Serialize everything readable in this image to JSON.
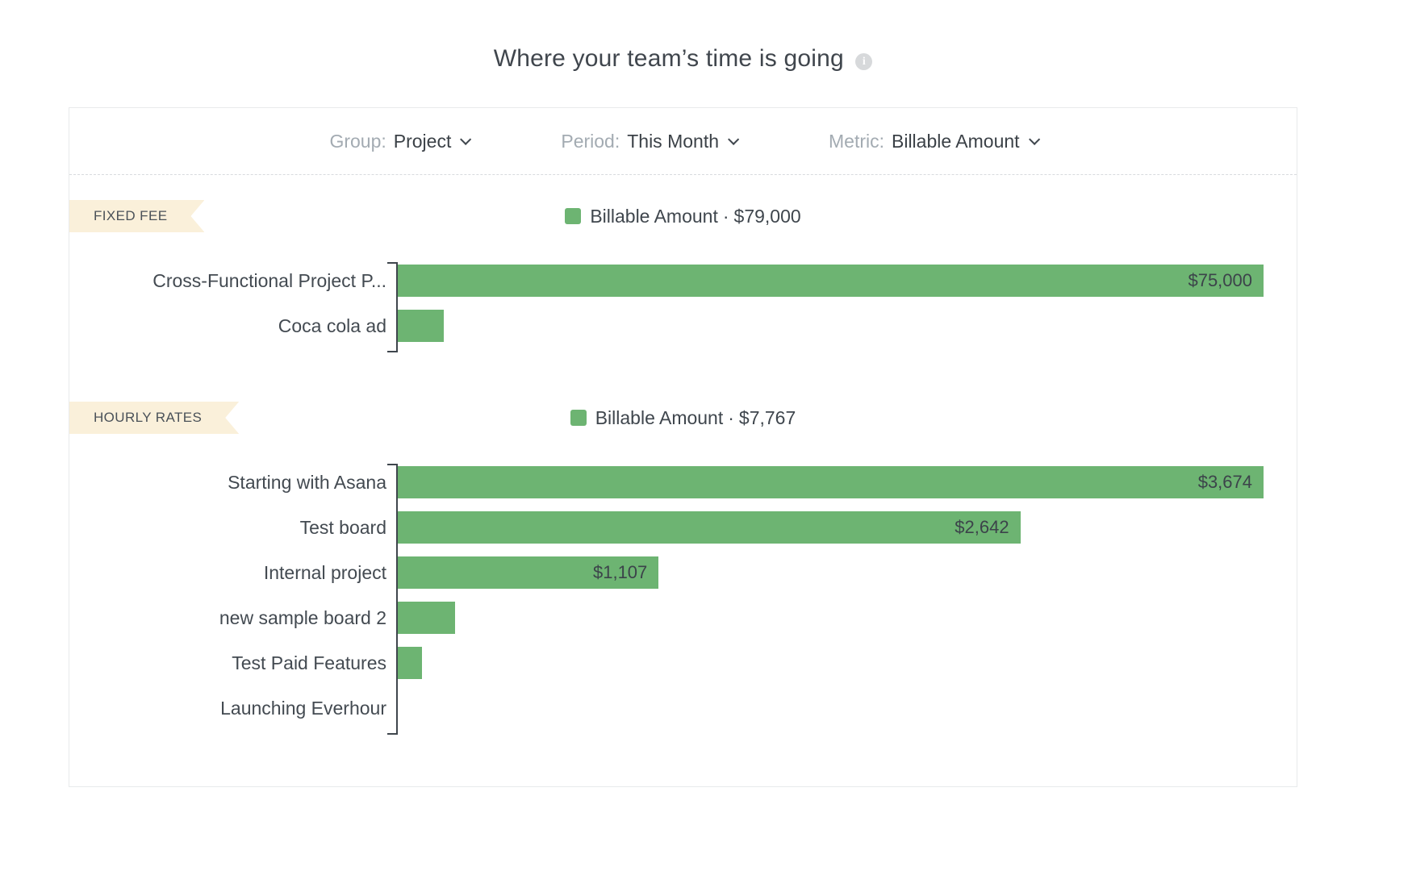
{
  "page": {
    "title": "Where your team’s time is going"
  },
  "filters": [
    {
      "label": "Group:",
      "value": "Project"
    },
    {
      "label": "Period:",
      "value": "This Month"
    },
    {
      "label": "Metric:",
      "value": "Billable Amount"
    }
  ],
  "colors": {
    "bar_green": "#6db472",
    "badge_background": "#faf0da",
    "panel_border": "#e8eaeb",
    "muted_text": "#a3abb2",
    "dark_text": "#3f464d"
  },
  "chart_data": [
    {
      "type": "bar",
      "orientation": "horizontal",
      "section_badge": "FIXED FEE",
      "legend": {
        "swatch_color": "#6db472",
        "label": "Billable Amount",
        "separator": "·",
        "total": "$79,000",
        "position": "top-center"
      },
      "categories": [
        "Cross-Functional Project P...",
        "Coca cola ad"
      ],
      "values": [
        75000,
        4000
      ],
      "value_labels": [
        "$75,000",
        ""
      ],
      "xlim": [
        0,
        75000
      ],
      "grid": false
    },
    {
      "type": "bar",
      "orientation": "horizontal",
      "section_badge": "HOURLY RATES",
      "legend": {
        "swatch_color": "#6db472",
        "label": "Billable Amount",
        "separator": "·",
        "total": "$7,767",
        "position": "top-center"
      },
      "categories": [
        "Starting with Asana",
        "Test board",
        "Internal project",
        "new sample board 2",
        "Test Paid Features",
        "Launching Everhour"
      ],
      "values": [
        3674,
        2642,
        1107,
        242,
        102,
        0
      ],
      "value_labels": [
        "$3,674",
        "$2,642",
        "$1,107",
        "",
        "",
        ""
      ],
      "xlim": [
        0,
        3674
      ],
      "grid": false
    }
  ]
}
